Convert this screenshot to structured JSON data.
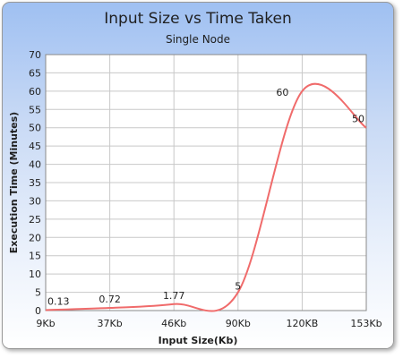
{
  "chart_data": {
    "type": "line",
    "title": "Input Size vs Time Taken",
    "subtitle": "Single Node",
    "xlabel": "Input Size(Kb)",
    "ylabel": "Execution Time (Minutes)",
    "categories": [
      "9Kb",
      "37Kb",
      "46Kb",
      "90Kb",
      "120KB",
      "153Kb"
    ],
    "values": [
      0.13,
      0.72,
      1.77,
      5,
      60,
      50
    ],
    "data_labels": [
      "0.13",
      "0.72",
      "1.77",
      "5",
      "60",
      "50"
    ],
    "ylim": [
      0,
      70
    ],
    "yticks": [
      0,
      5,
      10,
      15,
      20,
      25,
      30,
      35,
      40,
      45,
      50,
      55,
      60,
      65,
      70
    ],
    "grid": true,
    "line_color": "#f06b6b",
    "gridline_color": "#c8c8c8"
  }
}
